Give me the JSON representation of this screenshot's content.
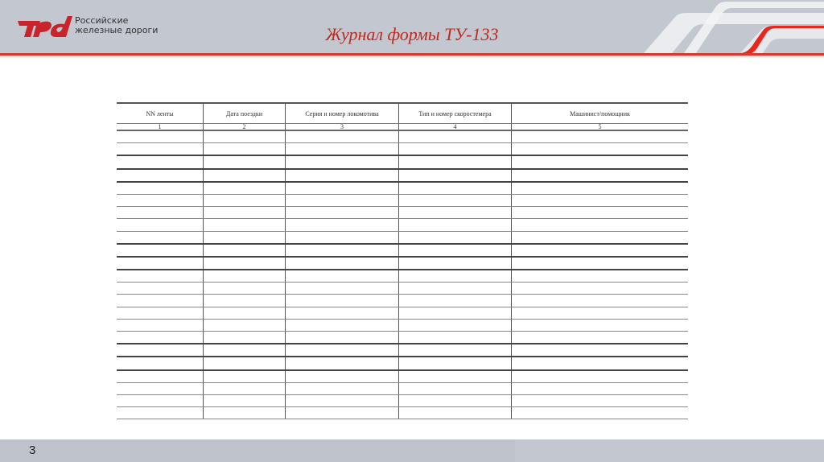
{
  "header": {
    "logo_text_line1": "Российские",
    "logo_text_line2": "железные дороги",
    "logo_mark": "РЖД",
    "title": "Журнал формы ТУ-133"
  },
  "table": {
    "columns": [
      "NN ленты",
      "Дата поездки",
      "Серия и номер локомотива",
      "Тип и номер скоростемера",
      "Машинист/помощник"
    ],
    "column_numbers": [
      "1",
      "2",
      "3",
      "4",
      "5"
    ],
    "empty_rows": 23
  },
  "footer": {
    "page_number": "3"
  },
  "colors": {
    "brand_red": "#d93a2e",
    "header_gray": "#c3c7cf"
  }
}
